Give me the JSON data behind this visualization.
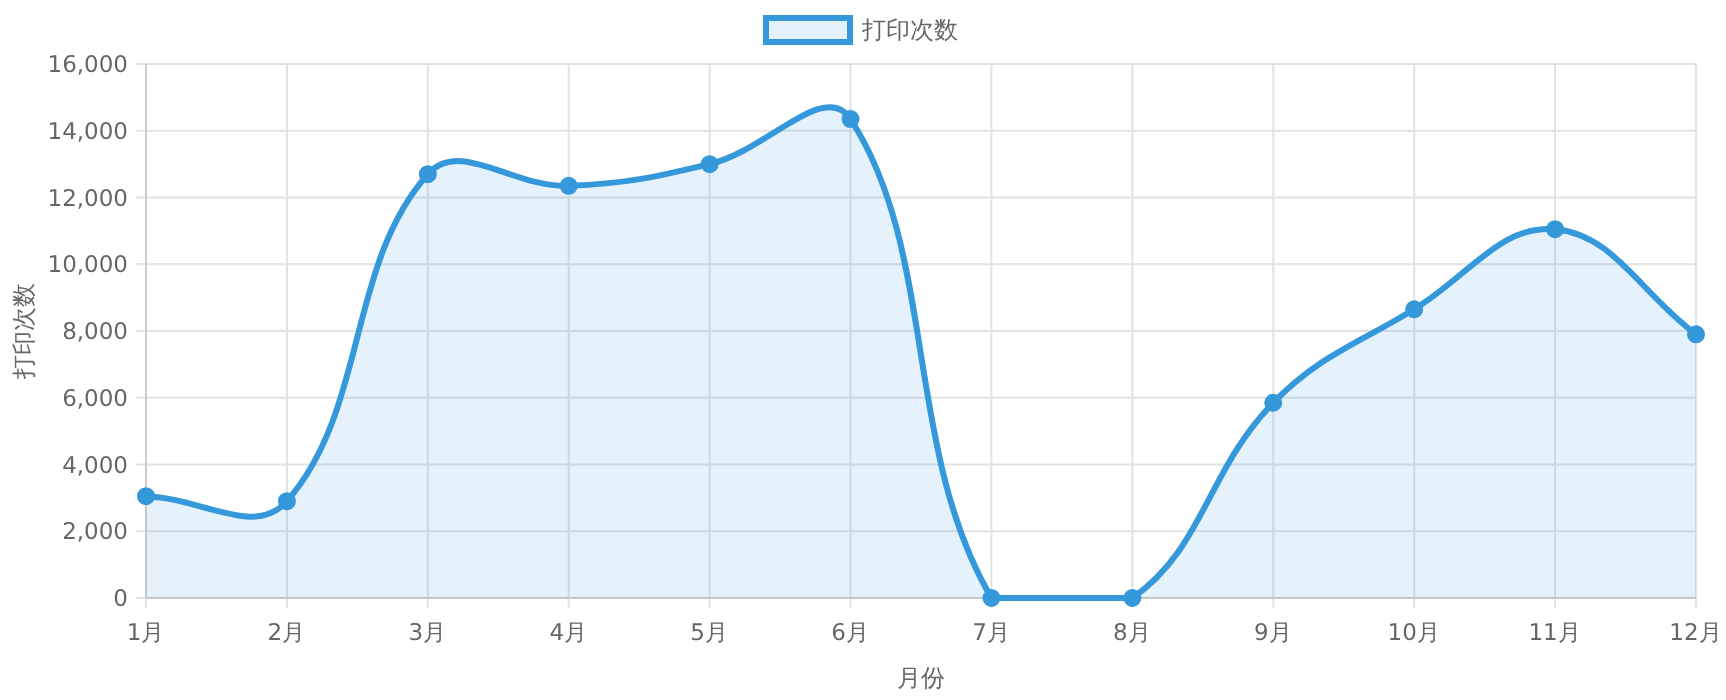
{
  "chart_data": {
    "type": "area",
    "xlabel": "月份",
    "ylabel": "打印次数",
    "categories": [
      "1月",
      "2月",
      "3月",
      "4月",
      "5月",
      "6月",
      "7月",
      "8月",
      "9月",
      "10月",
      "11月",
      "12月"
    ],
    "series": [
      {
        "name": "打印次数",
        "color": "#3498db",
        "values": [
          3050,
          2900,
          12700,
          12350,
          13000,
          14350,
          0,
          0,
          5850,
          8650,
          11050,
          7900
        ]
      }
    ],
    "ylim": [
      0,
      16000
    ],
    "yticks": [
      0,
      {
        "value": 2000,
        "label": "2,000"
      },
      {
        "value": 4000,
        "label": "4,000"
      },
      {
        "value": 6000,
        "label": "6,000"
      },
      {
        "value": 8000,
        "label": "8,000"
      },
      {
        "value": 10000,
        "label": "10,000"
      },
      {
        "value": 12000,
        "label": "12,000"
      },
      {
        "value": 14000,
        "label": "14,000"
      },
      {
        "value": 16000,
        "label": "16,000"
      }
    ],
    "grid": true,
    "legend": "top",
    "marker": "circle"
  }
}
